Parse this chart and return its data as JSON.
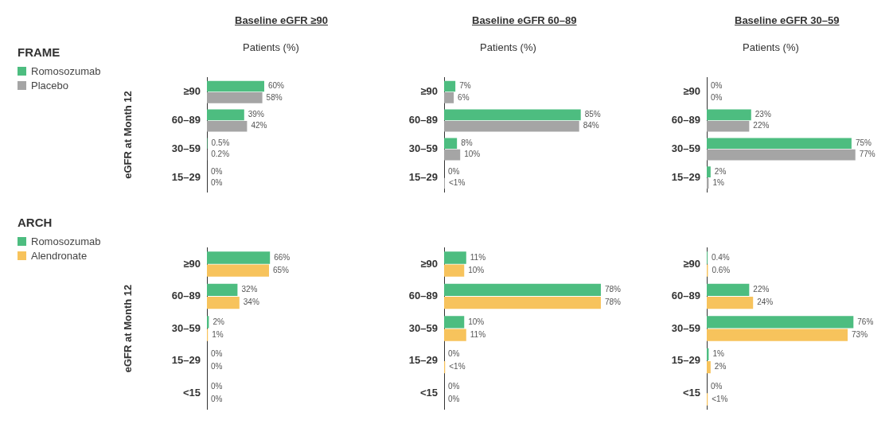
{
  "chart_data": [
    {
      "type": "bar",
      "orientation": "horizontal",
      "title": "Baseline eGFR ≥90",
      "xlabel": "Patients (%)",
      "ylabel": "eGFR at Month 12",
      "legend": "left",
      "legend_title": "FRAME",
      "tick_labels": "y",
      "categories": [
        "≥90",
        "60–89",
        "30–59",
        "15–29"
      ],
      "series": [
        {
          "name": "Romosozumab",
          "color": "#4dbd80",
          "values": [
            60,
            39,
            0.5,
            0
          ],
          "value_labels": [
            "60%",
            "39%",
            "0.5%",
            "0%"
          ]
        },
        {
          "name": "Placebo",
          "color": "#a5a5a5",
          "values": [
            58,
            42,
            0.2,
            0
          ],
          "value_labels": [
            "58%",
            "42%",
            "0.2%",
            "0%"
          ]
        }
      ]
    },
    {
      "type": "bar",
      "orientation": "horizontal",
      "title": "Baseline eGFR 60–89",
      "xlabel": "Patients (%)",
      "tick_labels": "y",
      "categories": [
        "≥90",
        "60–89",
        "30–59",
        "15–29"
      ],
      "series": [
        {
          "color": "#4dbd80",
          "values": [
            7,
            85,
            8,
            0
          ],
          "value_labels": [
            "7%",
            "85%",
            "8%",
            "0%"
          ]
        },
        {
          "color": "#a5a5a5",
          "values": [
            6,
            84,
            10,
            0.5
          ],
          "value_labels": [
            "6%",
            "84%",
            "10%",
            "<1%"
          ]
        }
      ]
    },
    {
      "type": "bar",
      "orientation": "horizontal",
      "title": "Baseline eGFR 30–59",
      "xlabel": "Patients (%)",
      "tick_labels": "y",
      "categories": [
        "≥90",
        "60–89",
        "30–59",
        "15–29"
      ],
      "series": [
        {
          "color": "#4dbd80",
          "values": [
            0,
            23,
            75,
            2
          ],
          "value_labels": [
            "0%",
            "23%",
            "75%",
            "2%"
          ]
        },
        {
          "color": "#a5a5a5",
          "values": [
            0,
            22,
            77,
            1
          ],
          "value_labels": [
            "0%",
            "22%",
            "77%",
            "1%"
          ]
        }
      ]
    },
    {
      "type": "bar",
      "orientation": "horizontal",
      "ylabel": "eGFR at Month 12",
      "legend": "left",
      "legend_title": "ARCH",
      "tick_labels": "y",
      "categories": [
        "≥90",
        "60–89",
        "30–59",
        "15–29",
        "<15"
      ],
      "series": [
        {
          "name": "Romosozumab",
          "color": "#4dbd80",
          "values": [
            66,
            32,
            2,
            0,
            0
          ],
          "value_labels": [
            "66%",
            "32%",
            "2%",
            "0%",
            "0%"
          ]
        },
        {
          "name": "Alendronate",
          "color": "#f7c35c",
          "values": [
            65,
            34,
            1,
            0,
            0
          ],
          "value_labels": [
            "65%",
            "34%",
            "1%",
            "0%",
            "0%"
          ]
        }
      ]
    },
    {
      "type": "bar",
      "orientation": "horizontal",
      "tick_labels": "y",
      "categories": [
        "≥90",
        "60–89",
        "30–59",
        "15–29",
        "<15"
      ],
      "series": [
        {
          "color": "#4dbd80",
          "values": [
            11,
            78,
            10,
            0,
            0
          ],
          "value_labels": [
            "11%",
            "78%",
            "10%",
            "0%",
            "0%"
          ]
        },
        {
          "color": "#f7c35c",
          "values": [
            10,
            78,
            11,
            0.5,
            0
          ],
          "value_labels": [
            "10%",
            "78%",
            "11%",
            "<1%",
            "0%"
          ]
        }
      ]
    },
    {
      "type": "bar",
      "orientation": "horizontal",
      "tick_labels": "y",
      "categories": [
        "≥90",
        "60–89",
        "30–59",
        "15–29",
        "<15"
      ],
      "series": [
        {
          "color": "#4dbd80",
          "values": [
            0.4,
            22,
            76,
            1,
            0
          ],
          "value_labels": [
            "0.4%",
            "22%",
            "76%",
            "1%",
            "0%"
          ]
        },
        {
          "color": "#f7c35c",
          "values": [
            0.6,
            24,
            73,
            2,
            0.5
          ],
          "value_labels": [
            "0.6%",
            "24%",
            "73%",
            "2%",
            "<1%"
          ]
        }
      ]
    }
  ]
}
